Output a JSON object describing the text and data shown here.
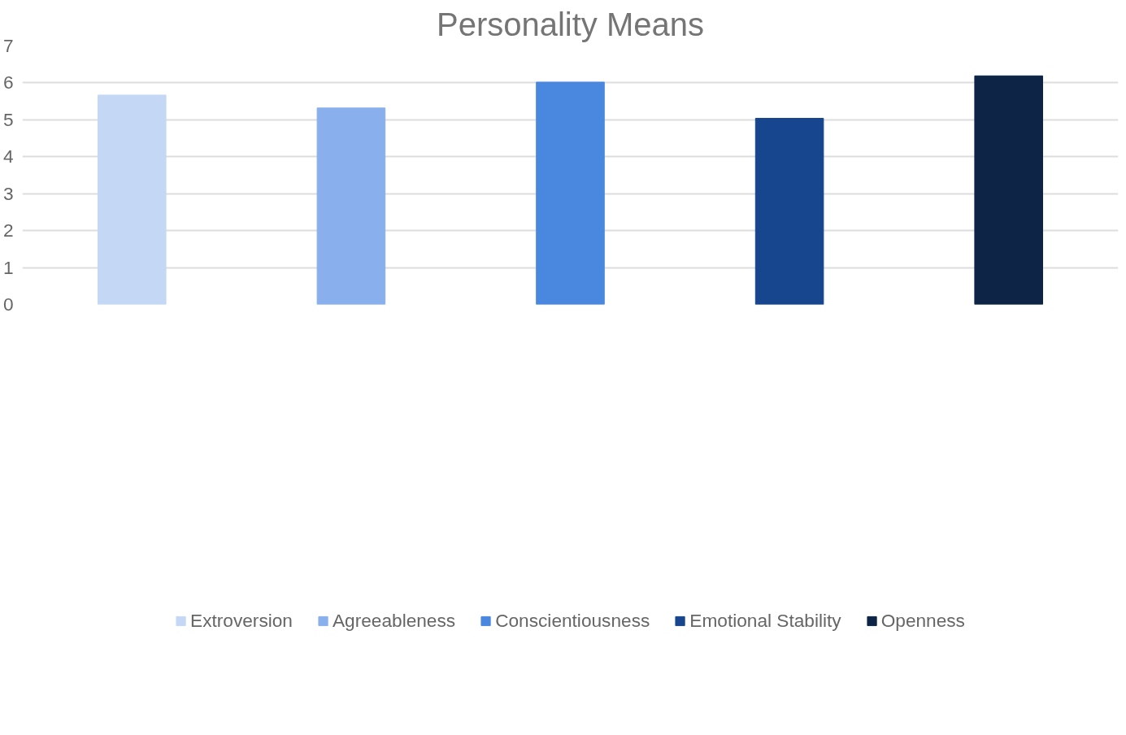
{
  "chart_data": {
    "type": "bar",
    "title": "Personality Means",
    "categories": [
      null,
      null,
      null,
      null,
      null
    ],
    "series": [
      {
        "name": "Extroversion",
        "color": "#c4d8f5",
        "values": [
          5.67,
          null,
          null,
          null,
          null
        ]
      },
      {
        "name": "Agreeableness",
        "color": "#89b0ec",
        "values": [
          null,
          5.32,
          null,
          null,
          null
        ]
      },
      {
        "name": "Conscientiousness",
        "color": "#4a88e0",
        "values": [
          null,
          null,
          6.02,
          null,
          null
        ]
      },
      {
        "name": "Emotional Stability",
        "color": "#17468f",
        "values": [
          null,
          null,
          null,
          5.04,
          null
        ]
      },
      {
        "name": "Openness",
        "color": "#0d2447",
        "values": [
          null,
          null,
          null,
          null,
          6.19
        ]
      }
    ],
    "ylim": [
      0,
      7
    ],
    "yticks": [
      0,
      1,
      2,
      3,
      4,
      5,
      6,
      7
    ],
    "grid": "y",
    "legend": "bottom"
  }
}
